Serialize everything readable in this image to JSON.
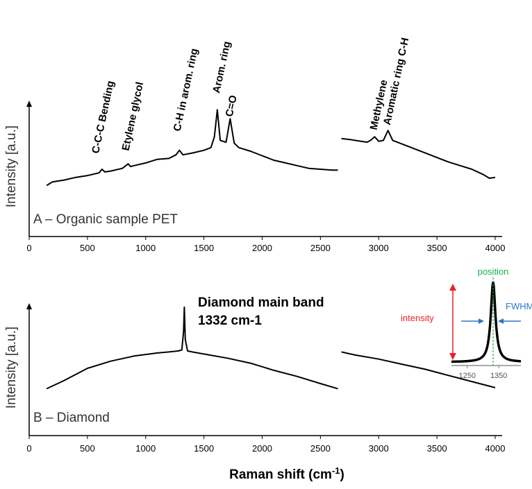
{
  "chart_data": [
    {
      "type": "line",
      "panel_label": "A – Organic sample PET",
      "ylabel": "Intensity [a.u.]",
      "xlim": [
        0,
        4000
      ],
      "x_ticks": [
        0,
        500,
        1000,
        1500,
        2000,
        2500,
        3000,
        3500,
        4000
      ],
      "annotations": [
        {
          "text": "C-C-C Bending",
          "x": 625
        },
        {
          "text": "Etylene glycol",
          "x": 860
        },
        {
          "text": "C-H in arom. ring",
          "x": 1290
        },
        {
          "text": "Arom. ring",
          "x": 1615
        },
        {
          "text": "C=O",
          "x": 1725
        },
        {
          "text": "Methylene",
          "x": 2965
        },
        {
          "text": "Aromatic ring C-H",
          "x": 3080
        }
      ],
      "series": [
        {
          "segment": 1,
          "x": [
            150,
            200,
            300,
            400,
            500,
            600,
            625,
            650,
            700,
            800,
            850,
            870,
            900,
            1000,
            1100,
            1200,
            1260,
            1290,
            1320,
            1400,
            1500,
            1560,
            1590,
            1615,
            1640,
            1690,
            1725,
            1760,
            1800,
            1900,
            2000,
            2100,
            2200,
            2300,
            2400,
            2500,
            2600,
            2650
          ],
          "y": [
            0.02,
            0.06,
            0.08,
            0.11,
            0.13,
            0.16,
            0.2,
            0.17,
            0.18,
            0.21,
            0.26,
            0.23,
            0.24,
            0.27,
            0.31,
            0.32,
            0.36,
            0.41,
            0.36,
            0.38,
            0.41,
            0.44,
            0.56,
            0.86,
            0.52,
            0.5,
            0.76,
            0.49,
            0.44,
            0.4,
            0.35,
            0.3,
            0.27,
            0.24,
            0.21,
            0.2,
            0.19,
            0.19
          ]
        },
        {
          "segment": 2,
          "x": [
            2680,
            2750,
            2850,
            2900,
            2930,
            2965,
            3000,
            3040,
            3080,
            3120,
            3200,
            3300,
            3400,
            3500,
            3600,
            3700,
            3800,
            3900,
            3950,
            4000
          ],
          "y": [
            0.54,
            0.53,
            0.51,
            0.5,
            0.52,
            0.56,
            0.51,
            0.52,
            0.63,
            0.52,
            0.48,
            0.43,
            0.38,
            0.33,
            0.28,
            0.24,
            0.2,
            0.14,
            0.1,
            0.11
          ]
        }
      ]
    },
    {
      "type": "line",
      "panel_label": "B – Diamond",
      "ylabel": "Intensity [a.u.]",
      "xlim": [
        0,
        4000
      ],
      "x_ticks": [
        0,
        500,
        1000,
        1500,
        2000,
        2500,
        3000,
        3500,
        4000
      ],
      "annotations": [
        {
          "text": "Diamond main band",
          "x": 1332
        },
        {
          "text": "1332 cm-1",
          "x": 1332
        }
      ],
      "series": [
        {
          "segment": 1,
          "x": [
            150,
            300,
            500,
            700,
            900,
            1100,
            1200,
            1280,
            1310,
            1325,
            1332,
            1340,
            1360,
            1400,
            1500,
            1700,
            1900,
            2100,
            2300,
            2500,
            2650
          ],
          "y": [
            0.12,
            0.2,
            0.32,
            0.39,
            0.44,
            0.47,
            0.48,
            0.49,
            0.5,
            0.68,
            0.92,
            0.6,
            0.49,
            0.48,
            0.46,
            0.42,
            0.37,
            0.3,
            0.24,
            0.17,
            0.12
          ]
        },
        {
          "segment": 2,
          "x": [
            2680,
            2800,
            3000,
            3200,
            3400,
            3600,
            3800,
            4000
          ],
          "y": [
            0.48,
            0.45,
            0.41,
            0.36,
            0.31,
            0.25,
            0.19,
            0.13
          ]
        }
      ],
      "inset": {
        "x_ticks": [
          1250,
          1350
        ],
        "xlim": [
          1200,
          1420
        ],
        "peak_x": 1332,
        "position_label": "position",
        "intensity_label": "intensity",
        "fwhm_label": "FWHM"
      }
    }
  ],
  "x_axis_title": {
    "main": "Raman shift (cm",
    "sup": "-1",
    "close": ")"
  },
  "colors": {
    "line": "#000000",
    "position": "#17b14a",
    "intensity": "#e8202a",
    "fwhm": "#2b78c4"
  }
}
